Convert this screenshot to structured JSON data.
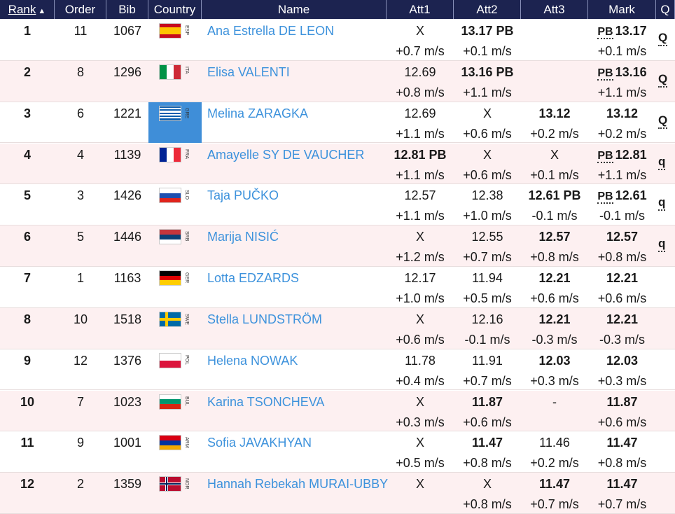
{
  "header": {
    "columns": [
      "Rank",
      "Order",
      "Bib",
      "Country",
      "Name",
      "Att1",
      "Att2",
      "Att3",
      "Mark",
      "Q"
    ]
  },
  "table": {
    "rows": [
      {
        "rank": 1,
        "order": 11,
        "bib": 1067,
        "country": "ESP",
        "name": "Ana Estrella DE LEON",
        "attempts": [
          {
            "mark": "X",
            "wind": "+0.7 m/s"
          },
          {
            "mark": "13.17 PB",
            "wind": "+0.1 m/s"
          },
          null
        ],
        "mark_note": "PB",
        "mark": "13.17",
        "mark_wind": "+0.1 m/s",
        "q": "Q"
      },
      {
        "rank": 2,
        "order": 8,
        "bib": 1296,
        "country": "ITA",
        "name": "Elisa VALENTI",
        "attempts": [
          {
            "mark": "12.69",
            "wind": "+0.8 m/s"
          },
          {
            "mark": "13.16 PB",
            "wind": "+1.1 m/s"
          },
          null
        ],
        "mark_note": "PB",
        "mark": "13.16",
        "mark_wind": "+1.1 m/s",
        "q": "Q"
      },
      {
        "rank": 3,
        "order": 6,
        "bib": 1221,
        "country": "GRE",
        "name": "Melina ZARAGKA",
        "attempts": [
          {
            "mark": "12.69",
            "wind": "+1.1 m/s"
          },
          {
            "mark": "X",
            "wind": "+0.6 m/s"
          },
          {
            "mark": "13.12",
            "wind": "+0.2 m/s"
          }
        ],
        "mark": "13.12",
        "mark_wind": "+0.2 m/s",
        "q": "Q"
      },
      {
        "rank": 4,
        "order": 4,
        "bib": 1139,
        "country": "FRA",
        "name": "Amayelle SY DE VAUCHER",
        "attempts": [
          {
            "mark": "12.81 PB",
            "wind": "+1.1 m/s"
          },
          {
            "mark": "X",
            "wind": "+0.6 m/s"
          },
          {
            "mark": "X",
            "wind": "+0.1 m/s"
          }
        ],
        "mark_note": "PB",
        "mark": "12.81",
        "mark_wind": "+1.1 m/s",
        "q": "q"
      },
      {
        "rank": 5,
        "order": 3,
        "bib": 1426,
        "country": "SLO",
        "name": "Taja PUČKO",
        "attempts": [
          {
            "mark": "12.57",
            "wind": "+1.1 m/s"
          },
          {
            "mark": "12.38",
            "wind": "+1.0 m/s"
          },
          {
            "mark": "12.61 PB",
            "wind": "-0.1 m/s"
          }
        ],
        "mark_note": "PB",
        "mark": "12.61",
        "mark_wind": "-0.1 m/s",
        "q": "q"
      },
      {
        "rank": 6,
        "order": 5,
        "bib": 1446,
        "country": "SRB",
        "name": "Marija NISIĆ",
        "attempts": [
          {
            "mark": "X",
            "wind": "+1.2 m/s"
          },
          {
            "mark": "12.55",
            "wind": "+0.7 m/s"
          },
          {
            "mark": "12.57",
            "wind": "+0.8 m/s"
          }
        ],
        "mark": "12.57",
        "mark_wind": "+0.8 m/s",
        "q": "q"
      },
      {
        "rank": 7,
        "order": 1,
        "bib": 1163,
        "country": "GER",
        "name": "Lotta EDZARDS",
        "attempts": [
          {
            "mark": "12.17",
            "wind": "+1.0 m/s"
          },
          {
            "mark": "11.94",
            "wind": "+0.5 m/s"
          },
          {
            "mark": "12.21",
            "wind": "+0.6 m/s"
          }
        ],
        "mark": "12.21",
        "mark_wind": "+0.6 m/s"
      },
      {
        "rank": 8,
        "order": 10,
        "bib": 1518,
        "country": "SWE",
        "name": "Stella LUNDSTRÖM",
        "attempts": [
          {
            "mark": "X",
            "wind": "+0.6 m/s"
          },
          {
            "mark": "12.16",
            "wind": "-0.1 m/s"
          },
          {
            "mark": "12.21",
            "wind": "-0.3 m/s"
          }
        ],
        "mark": "12.21",
        "mark_wind": "-0.3 m/s"
      },
      {
        "rank": 9,
        "order": 12,
        "bib": 1376,
        "country": "POL",
        "name": "Helena NOWAK",
        "attempts": [
          {
            "mark": "11.78",
            "wind": "+0.4 m/s"
          },
          {
            "mark": "11.91",
            "wind": "+0.7 m/s"
          },
          {
            "mark": "12.03",
            "wind": "+0.3 m/s"
          }
        ],
        "mark": "12.03",
        "mark_wind": "+0.3 m/s"
      },
      {
        "rank": 10,
        "order": 7,
        "bib": 1023,
        "country": "BUL",
        "name": "Karina TSONCHEVA",
        "attempts": [
          {
            "mark": "X",
            "wind": "+0.3 m/s"
          },
          {
            "mark": "11.87",
            "wind": "+0.6 m/s"
          },
          {
            "mark": "-"
          }
        ],
        "mark": "11.87",
        "mark_wind": "+0.6 m/s"
      },
      {
        "rank": 11,
        "order": 9,
        "bib": 1001,
        "country": "ARM",
        "name": "Sofia JAVAKHYAN",
        "attempts": [
          {
            "mark": "X",
            "wind": "+0.5 m/s"
          },
          {
            "mark": "11.47",
            "wind": "+0.8 m/s"
          },
          {
            "mark": "11.46",
            "wind": "+0.2 m/s"
          }
        ],
        "mark": "11.47",
        "mark_wind": "+0.8 m/s"
      },
      {
        "rank": 12,
        "order": 2,
        "bib": 1359,
        "country": "NOR",
        "name": "Hannah Rebekah MURAI-UBBY",
        "attempts": [
          {
            "mark": "X"
          },
          {
            "mark": "X",
            "wind": "+0.8 m/s"
          },
          {
            "mark": "11.47",
            "wind": "+0.7 m/s"
          }
        ],
        "mark": "11.47",
        "mark_wind": "+0.7 m/s"
      }
    ]
  }
}
